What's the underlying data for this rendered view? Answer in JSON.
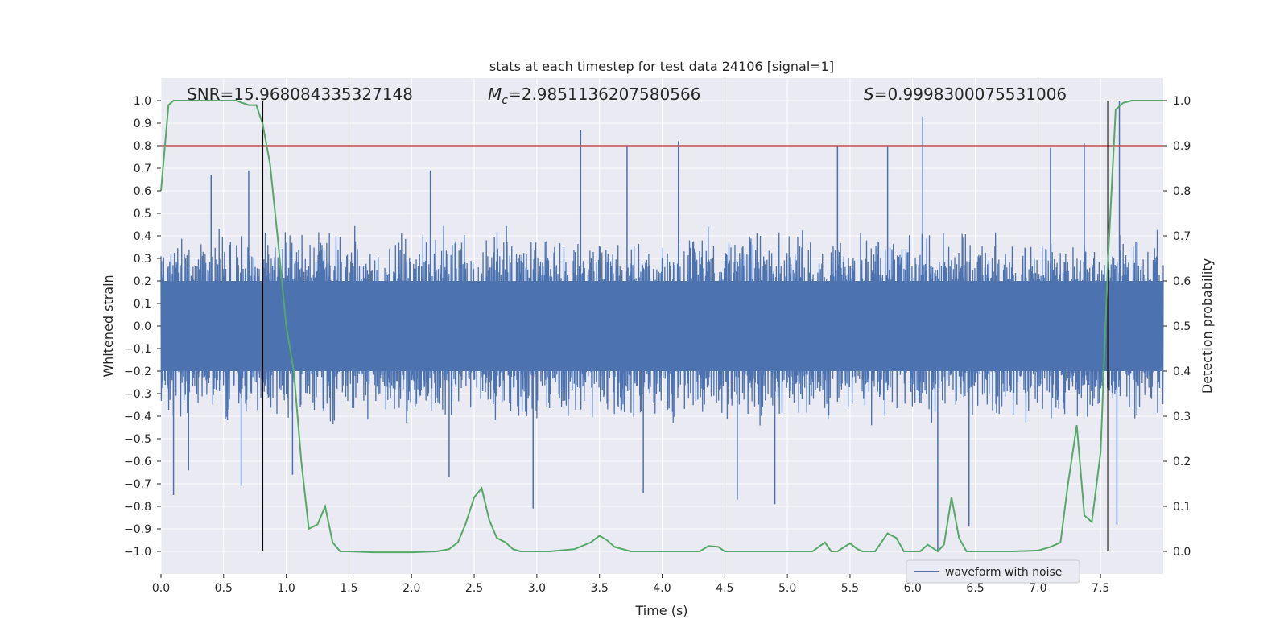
{
  "chart_data": {
    "type": "line",
    "title": "stats at each timestep for test data 24106 [signal=1]",
    "xlabel": "Time (s)",
    "ylabel": "Whitened strain",
    "y2label": "Detection probability",
    "xlim": [
      0,
      8
    ],
    "ylim": [
      -1.1,
      1.1
    ],
    "y2lim": [
      -0.05,
      1.05
    ],
    "xticks": [
      0.0,
      0.5,
      1.0,
      1.5,
      2.0,
      2.5,
      3.0,
      3.5,
      4.0,
      4.5,
      5.0,
      5.5,
      6.0,
      6.5,
      7.0,
      7.5
    ],
    "yticks": [
      -1.0,
      -0.9,
      -0.8,
      -0.7,
      -0.6,
      -0.5,
      -0.4,
      -0.3,
      -0.2,
      -0.1,
      0.0,
      0.1,
      0.2,
      0.3,
      0.4,
      0.5,
      0.6,
      0.7,
      0.8,
      0.9,
      1.0
    ],
    "y2ticks": [
      0.0,
      0.1,
      0.2,
      0.3,
      0.4,
      0.5,
      0.6,
      0.7,
      0.8,
      0.9,
      1.0
    ],
    "grid": true,
    "annotations": {
      "snr": "SNR=15.968084335327148",
      "mc_prefix": "M",
      "mc_sub": "c",
      "mc_value": "=2.9851136207580566",
      "s_prefix": "S",
      "s_value": "=0.9998300075531006"
    },
    "threshold": {
      "y2": 0.9,
      "color": "#c44e52"
    },
    "vlines": {
      "x": [
        0.81,
        7.56
      ],
      "ymin": -1.0,
      "ymax": 1.0,
      "color": "#000000"
    },
    "waveform": {
      "name": "waveform with noise",
      "color": "#4c72b0",
      "typical_envelope": 0.42,
      "spikes": [
        {
          "x": 0.1,
          "y": -0.75
        },
        {
          "x": 0.22,
          "y": -0.64
        },
        {
          "x": 0.4,
          "y": 0.67
        },
        {
          "x": 0.64,
          "y": -0.71
        },
        {
          "x": 0.7,
          "y": 0.69
        },
        {
          "x": 1.05,
          "y": -0.66
        },
        {
          "x": 2.15,
          "y": 0.69
        },
        {
          "x": 2.3,
          "y": -0.67
        },
        {
          "x": 2.97,
          "y": -0.81
        },
        {
          "x": 3.35,
          "y": 0.87
        },
        {
          "x": 3.72,
          "y": 0.8
        },
        {
          "x": 3.85,
          "y": -0.74
        },
        {
          "x": 4.13,
          "y": 0.82
        },
        {
          "x": 4.6,
          "y": -0.77
        },
        {
          "x": 4.9,
          "y": -0.79
        },
        {
          "x": 5.4,
          "y": 0.8
        },
        {
          "x": 5.8,
          "y": 0.8
        },
        {
          "x": 6.08,
          "y": 0.93
        },
        {
          "x": 6.2,
          "y": -1.0
        },
        {
          "x": 6.45,
          "y": -0.89
        },
        {
          "x": 7.1,
          "y": 0.79
        },
        {
          "x": 7.37,
          "y": 0.81
        },
        {
          "x": 7.65,
          "y": 1.0
        },
        {
          "x": 7.63,
          "y": -0.88
        }
      ]
    },
    "probability": {
      "name": "Detection probability",
      "color": "#55a868",
      "x": [
        0.0,
        0.06,
        0.1,
        0.2,
        0.5,
        0.6,
        0.7,
        0.76,
        0.81,
        0.87,
        0.93,
        1.0,
        1.06,
        1.12,
        1.18,
        1.25,
        1.31,
        1.37,
        1.43,
        1.5,
        1.7,
        2.0,
        2.2,
        2.3,
        2.37,
        2.43,
        2.5,
        2.56,
        2.62,
        2.68,
        2.75,
        2.81,
        2.87,
        2.95,
        3.1,
        3.3,
        3.43,
        3.5,
        3.56,
        3.62,
        3.75,
        3.95,
        4.1,
        4.2,
        4.3,
        4.37,
        4.45,
        4.5,
        4.6,
        4.8,
        5.0,
        5.2,
        5.3,
        5.35,
        5.4,
        5.5,
        5.56,
        5.6,
        5.7,
        5.8,
        5.87,
        5.93,
        6.0,
        6.06,
        6.12,
        6.2,
        6.25,
        6.31,
        6.37,
        6.43,
        6.5,
        6.6,
        6.8,
        7.0,
        7.1,
        7.18,
        7.24,
        7.31,
        7.37,
        7.43,
        7.5,
        7.56,
        7.62,
        7.68,
        7.75,
        7.85,
        8.0
      ],
      "y": [
        0.8,
        0.99,
        1.0,
        1.0,
        1.0,
        1.0,
        0.99,
        0.99,
        0.95,
        0.86,
        0.7,
        0.5,
        0.4,
        0.2,
        0.05,
        0.06,
        0.1,
        0.02,
        0.0,
        0.0,
        -0.002,
        -0.002,
        0.0,
        0.005,
        0.02,
        0.06,
        0.12,
        0.14,
        0.07,
        0.03,
        0.02,
        0.005,
        0.0,
        0.0,
        0.0,
        0.005,
        0.02,
        0.035,
        0.025,
        0.01,
        0.0,
        0.0,
        0.0,
        0.0,
        0.0,
        0.012,
        0.01,
        0.0,
        0.0,
        0.0,
        0.0,
        0.0,
        0.02,
        0.0,
        0.0,
        0.018,
        0.005,
        0.0,
        0.0,
        0.04,
        0.03,
        0.0,
        0.0,
        0.0,
        0.015,
        0.0,
        0.015,
        0.12,
        0.03,
        0.0,
        0.0,
        0.0,
        0.0,
        0.002,
        0.01,
        0.02,
        0.15,
        0.28,
        0.08,
        0.065,
        0.22,
        0.65,
        0.98,
        0.995,
        1.0,
        1.0,
        1.0
      ]
    },
    "legend": {
      "position": "lower-right",
      "label": "waveform with noise"
    },
    "colors": {
      "background": "#eaeaf2",
      "grid": "#ffffff",
      "text": "#262626"
    }
  }
}
